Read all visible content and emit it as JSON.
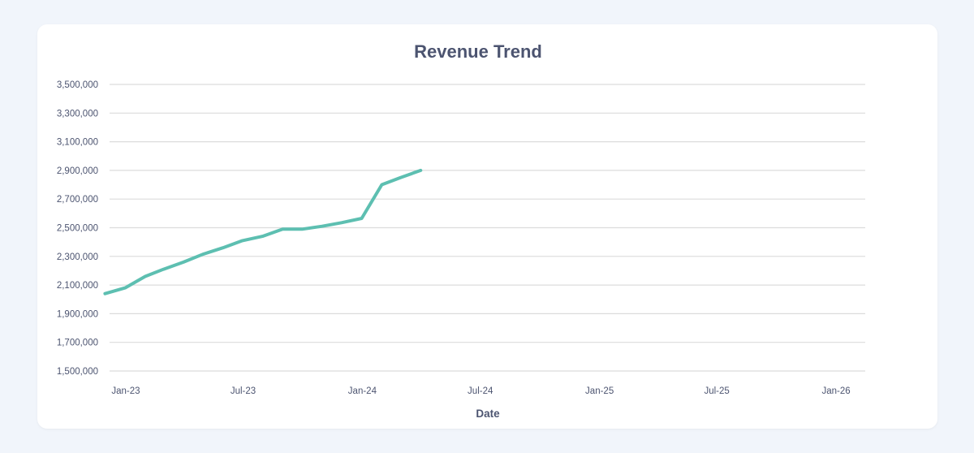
{
  "chart_data": {
    "type": "line",
    "title": "Revenue Trend",
    "xlabel": "Date",
    "ylabel": "",
    "ylim": [
      1500000,
      3500000
    ],
    "yticks": [
      "1,500,000",
      "1,700,000",
      "1,900,000",
      "2,100,000",
      "2,300,000",
      "2,500,000",
      "2,700,000",
      "2,900,000",
      "3,100,000",
      "3,300,000",
      "3,500,000"
    ],
    "xlim": [
      "2022-12-07",
      "2026-02-15"
    ],
    "xticks": [
      {
        "date": "2023-01-01",
        "label": "Jan-23"
      },
      {
        "date": "2023-07-01",
        "label": "Jul-23"
      },
      {
        "date": "2024-01-01",
        "label": "Jan-24"
      },
      {
        "date": "2024-07-01",
        "label": "Jul-24"
      },
      {
        "date": "2025-01-01",
        "label": "Jan-25"
      },
      {
        "date": "2025-07-01",
        "label": "Jul-25"
      },
      {
        "date": "2026-01-01",
        "label": "Jan-26"
      }
    ],
    "grid": "horizontal",
    "line_color": "#5dbfb1",
    "x": [
      "2022-11-30",
      "2022-12-31",
      "2023-01-31",
      "2023-02-28",
      "2023-03-31",
      "2023-04-30",
      "2023-05-31",
      "2023-06-30",
      "2023-07-31",
      "2023-08-31",
      "2023-09-30",
      "2023-10-31",
      "2023-11-30",
      "2023-12-31",
      "2024-01-31",
      "2024-02-29",
      "2024-03-31"
    ],
    "values": [
      2040000,
      2080000,
      2160000,
      2210000,
      2260000,
      2315000,
      2360000,
      2410000,
      2440000,
      2490000,
      2490000,
      2510000,
      2535000,
      2565000,
      2800000,
      2850000,
      2900000
    ]
  }
}
